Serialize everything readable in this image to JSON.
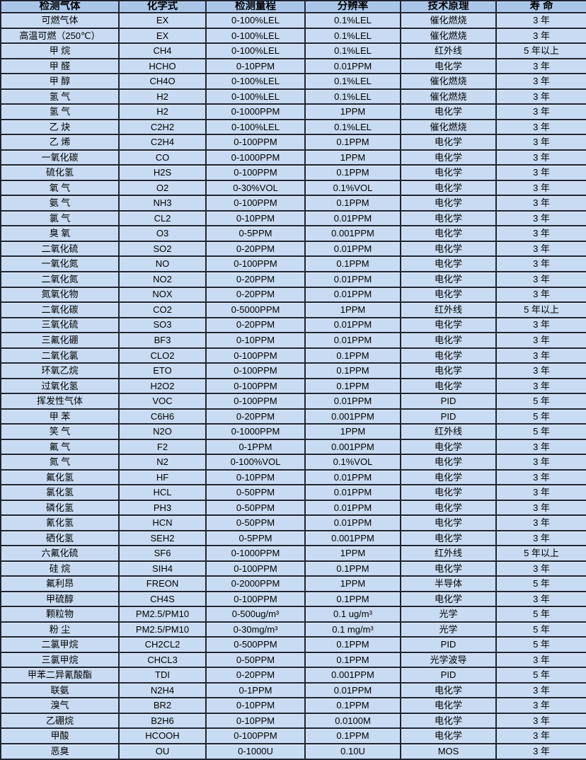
{
  "colors": {
    "header_bg": "#a9c6e8",
    "row_bg": "#c9dbf2",
    "border": "#1d2433",
    "text": "#000000"
  },
  "table": {
    "headers": [
      "检测气体",
      "化学式",
      "检测量程",
      "分辨率",
      "技术原理",
      "寿 命"
    ],
    "rows": [
      [
        "可燃气体",
        "EX",
        "0-100%LEL",
        "0.1%LEL",
        "催化燃烧",
        "3 年"
      ],
      [
        "高温可燃（250℃）",
        "EX",
        "0-100%LEL",
        "0.1%LEL",
        "催化燃烧",
        "3 年"
      ],
      [
        "甲 烷",
        "CH4",
        "0-100%LEL",
        "0.1%LEL",
        "红外线",
        "5 年以上"
      ],
      [
        "甲 醛",
        "HCHO",
        "0-10PPM",
        "0.01PPM",
        "电化学",
        "3 年"
      ],
      [
        "甲 醇",
        "CH4O",
        "0-100%LEL",
        "0.1%LEL",
        "催化燃烧",
        "3 年"
      ],
      [
        "氢 气",
        "H2",
        "0-100%LEL",
        "0.1%LEL",
        "催化燃烧",
        "3 年"
      ],
      [
        "氢 气",
        "H2",
        "0-1000PPM",
        "1PPM",
        "电化学",
        "3 年"
      ],
      [
        "乙 炔",
        "C2H2",
        "0-100%LEL",
        "0.1%LEL",
        "催化燃烧",
        "3 年"
      ],
      [
        "乙 烯",
        "C2H4",
        "0-100PPM",
        "0.1PPM",
        "电化学",
        "3 年"
      ],
      [
        "一氧化碳",
        "CO",
        "0-1000PPM",
        "1PPM",
        "电化学",
        "3 年"
      ],
      [
        "硫化氢",
        "H2S",
        "0-100PPM",
        "0.1PPM",
        "电化学",
        "3 年"
      ],
      [
        "氧 气",
        "O2",
        "0-30%VOL",
        "0.1%VOL",
        "电化学",
        "3 年"
      ],
      [
        "氨 气",
        "NH3",
        "0-100PPM",
        "0.1PPM",
        "电化学",
        "3 年"
      ],
      [
        "氯 气",
        "CL2",
        "0-10PPM",
        "0.01PPM",
        "电化学",
        "3 年"
      ],
      [
        "臭 氧",
        "O3",
        "0-5PPM",
        "0.001PPM",
        "电化学",
        "3 年"
      ],
      [
        "二氧化硫",
        "SO2",
        "0-20PPM",
        "0.01PPM",
        "电化学",
        "3 年"
      ],
      [
        "一氧化氮",
        "NO",
        "0-100PPM",
        "0.1PPM",
        "电化学",
        "3 年"
      ],
      [
        "二氧化氮",
        "NO2",
        "0-20PPM",
        "0.01PPM",
        "电化学",
        "3 年"
      ],
      [
        "氮氧化物",
        "NOX",
        "0-20PPM",
        "0.01PPM",
        "电化学",
        "3 年"
      ],
      [
        "二氧化碳",
        "CO2",
        "0-5000PPM",
        "1PPM",
        "红外线",
        "5 年以上"
      ],
      [
        "三氧化硫",
        "SO3",
        "0-20PPM",
        "0.01PPM",
        "电化学",
        "3 年"
      ],
      [
        "三氟化硼",
        "BF3",
        "0-10PPM",
        "0.01PPM",
        "电化学",
        "3 年"
      ],
      [
        "二氧化氯",
        "CLO2",
        "0-100PPM",
        "0.1PPM",
        "电化学",
        "3 年"
      ],
      [
        "环氧乙烷",
        "ETO",
        "0-100PPM",
        "0.1PPM",
        "电化学",
        "3 年"
      ],
      [
        "过氧化氢",
        "H2O2",
        "0-100PPM",
        "0.1PPM",
        "电化学",
        "3 年"
      ],
      [
        "挥发性气体",
        "VOC",
        "0-100PPM",
        "0.01PPM",
        "PID",
        "5 年"
      ],
      [
        "甲 苯",
        "C6H6",
        "0-20PPM",
        "0.001PPM",
        "PID",
        "5 年"
      ],
      [
        "笑 气",
        "N2O",
        "0-1000PPM",
        "1PPM",
        "红外线",
        "5 年"
      ],
      [
        "氟 气",
        "F2",
        "0-1PPM",
        "0.001PPM",
        "电化学",
        "3 年"
      ],
      [
        "氮 气",
        "N2",
        "0-100%VOL",
        "0.1%VOL",
        "电化学",
        "3 年"
      ],
      [
        "氟化氢",
        "HF",
        "0-10PPM",
        "0.01PPM",
        "电化学",
        "3 年"
      ],
      [
        "氯化氢",
        "HCL",
        "0-50PPM",
        "0.01PPM",
        "电化学",
        "3 年"
      ],
      [
        "磷化氢",
        "PH3",
        "0-50PPM",
        "0.01PPM",
        "电化学",
        "3 年"
      ],
      [
        "氰化氢",
        "HCN",
        "0-50PPM",
        "0.01PPM",
        "电化学",
        "3 年"
      ],
      [
        "硒化氢",
        "SEH2",
        "0-5PPM",
        "0.001PPM",
        "电化学",
        "3 年"
      ],
      [
        "六氟化硫",
        "SF6",
        "0-1000PPM",
        "1PPM",
        "红外线",
        "5 年以上"
      ],
      [
        "硅 烷",
        "SIH4",
        "0-100PPM",
        "0.1PPM",
        "电化学",
        "3 年"
      ],
      [
        "氟利昂",
        "FREON",
        "0-2000PPM",
        "1PPM",
        "半导体",
        "5 年"
      ],
      [
        "甲硫醇",
        "CH4S",
        "0-100PPM",
        "0.1PPM",
        "电化学",
        "3 年"
      ],
      [
        "颗粒物",
        "PM2.5/PM10",
        "0-500ug/m³",
        "0.1 ug/m³",
        "光学",
        "5 年"
      ],
      [
        "粉 尘",
        "PM2.5/PM10",
        "0-30mg/m³",
        "0.1 mg/m³",
        "光学",
        "5 年"
      ],
      [
        "二氯甲烷",
        "CH2CL2",
        "0-500PPM",
        "0.1PPM",
        "PID",
        "5 年"
      ],
      [
        "三氯甲烷",
        "CHCL3",
        "0-50PPM",
        "0.1PPM",
        "光学波导",
        "3 年"
      ],
      [
        "甲苯二异氰酸酯",
        "TDI",
        "0-20PPM",
        "0.001PPM",
        "PID",
        "5 年"
      ],
      [
        "联氨",
        "N2H4",
        "0-1PPM",
        "0.01PPM",
        "电化学",
        "3 年"
      ],
      [
        "溴气",
        "BR2",
        "0-10PPM",
        "0.1PPM",
        "电化学",
        "3 年"
      ],
      [
        "乙硼烷",
        "B2H6",
        "0-10PPM",
        "0.0100M",
        "电化学",
        "3 年"
      ],
      [
        "甲酸",
        "HCOOH",
        "0-100PPM",
        "0.1PPM",
        "电化学",
        "3 年"
      ],
      [
        "恶臭",
        "OU",
        "0-1000U",
        "0.10U",
        "MOS",
        "3 年"
      ]
    ]
  }
}
